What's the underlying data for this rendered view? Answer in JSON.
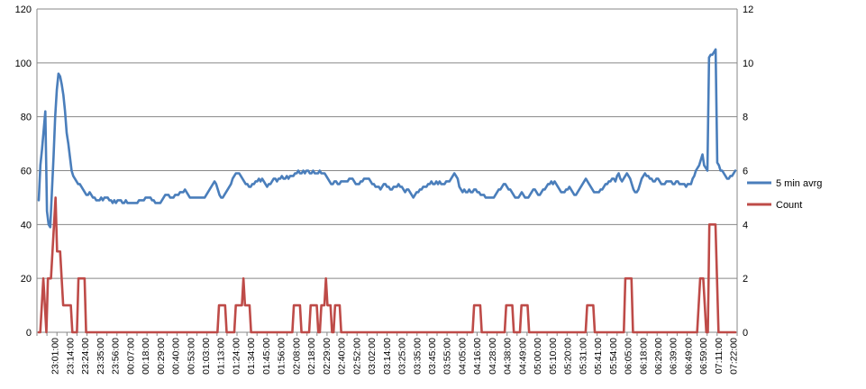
{
  "chart_data": {
    "type": "line",
    "title": "",
    "xlabel": "",
    "ylabel": "",
    "y_left": {
      "min": 0,
      "max": 120,
      "ticks": [
        "0",
        "20",
        "40",
        "60",
        "80",
        "100",
        "120"
      ]
    },
    "y_right": {
      "min": 0,
      "max": 12,
      "ticks": [
        "0",
        "2",
        "4",
        "6",
        "8",
        "10",
        "12"
      ]
    },
    "grid": "horizontal",
    "legend_position": "right",
    "x_tick_labels": [
      "23:01:00",
      "23:14:00",
      "23:24:00",
      "23:35:00",
      "23:56:00",
      "00:07:00",
      "00:18:00",
      "00:29:00",
      "00:40:00",
      "00:53:00",
      "01:03:00",
      "01:13:00",
      "01:24:00",
      "01:34:00",
      "01:45:00",
      "01:56:00",
      "02:08:00",
      "02:18:00",
      "02:29:00",
      "02:40:00",
      "02:52:00",
      "03:02:00",
      "03:14:00",
      "03:25:00",
      "03:35:00",
      "03:45:00",
      "03:55:00",
      "04:05:00",
      "04:16:00",
      "04:28:00",
      "04:38:00",
      "04:49:00",
      "05:00:00",
      "05:10:00",
      "05:20:00",
      "05:31:00",
      "05:41:00",
      "05:54:00",
      "06:05:00",
      "06:18:00",
      "06:29:00",
      "06:39:00",
      "06:49:00",
      "06:59:00",
      "07:11:00",
      "07:22:00"
    ],
    "series": [
      {
        "name": "5 min avrg",
        "axis": "left",
        "color": "#4a7ebb",
        "values": [
          49,
          62,
          68,
          75,
          82,
          45,
          40,
          39,
          52,
          65,
          80,
          90,
          96,
          95,
          92,
          88,
          82,
          74,
          70,
          65,
          60,
          58,
          57,
          56,
          55,
          55,
          54,
          53,
          52,
          51,
          51,
          52,
          51,
          50,
          50,
          49,
          49,
          49,
          50,
          49,
          50,
          50,
          50,
          49,
          49,
          48,
          49,
          48,
          49,
          49,
          49,
          48,
          48,
          49,
          48,
          48,
          48,
          48,
          48,
          48,
          48,
          49,
          49,
          49,
          49,
          50,
          50,
          50,
          50,
          49,
          49,
          48,
          48,
          48,
          48,
          49,
          50,
          51,
          51,
          51,
          50,
          50,
          50,
          51,
          51,
          51,
          52,
          52,
          52,
          53,
          52,
          51,
          50,
          50,
          50,
          50,
          50,
          50,
          50,
          50,
          50,
          50,
          51,
          52,
          53,
          54,
          55,
          56,
          55,
          53,
          51,
          50,
          50,
          51,
          52,
          53,
          54,
          55,
          57,
          58,
          59,
          59,
          59,
          58,
          57,
          56,
          55,
          55,
          54,
          54,
          55,
          55,
          56,
          56,
          57,
          56,
          57,
          56,
          55,
          54,
          55,
          55,
          56,
          57,
          57,
          56,
          57,
          57,
          58,
          57,
          57,
          58,
          57,
          58,
          58,
          58,
          59,
          59,
          60,
          59,
          59,
          60,
          59,
          60,
          60,
          59,
          59,
          60,
          59,
          59,
          59,
          60,
          59,
          59,
          59,
          58,
          57,
          56,
          55,
          55,
          56,
          56,
          55,
          55,
          56,
          56,
          56,
          56,
          56,
          57,
          57,
          57,
          56,
          55,
          55,
          55,
          56,
          56,
          57,
          57,
          57,
          57,
          56,
          55,
          55,
          54,
          54,
          54,
          53,
          54,
          55,
          55,
          54,
          54,
          53,
          53,
          54,
          54,
          54,
          55,
          54,
          54,
          53,
          52,
          53,
          53,
          52,
          51,
          50,
          51,
          52,
          52,
          53,
          53,
          54,
          54,
          54,
          55,
          55,
          56,
          55,
          55,
          56,
          55,
          56,
          55,
          55,
          55,
          56,
          56,
          56,
          57,
          58,
          59,
          58,
          57,
          54,
          53,
          52,
          53,
          52,
          52,
          53,
          52,
          52,
          53,
          53,
          52,
          52,
          51,
          51,
          51,
          50,
          50,
          50,
          50,
          50,
          50,
          51,
          52,
          53,
          53,
          54,
          55,
          55,
          54,
          53,
          53,
          52,
          51,
          50,
          50,
          50,
          51,
          52,
          51,
          50,
          50,
          50,
          51,
          52,
          53,
          53,
          52,
          51,
          51,
          52,
          53,
          53,
          54,
          55,
          55,
          56,
          55,
          56,
          55,
          54,
          53,
          52,
          52,
          52,
          53,
          53,
          54,
          53,
          52,
          51,
          51,
          52,
          53,
          54,
          55,
          56,
          57,
          56,
          55,
          54,
          53,
          52,
          52,
          52,
          52,
          53,
          53,
          54,
          55,
          55,
          56,
          56,
          57,
          57,
          56,
          58,
          59,
          57,
          56,
          57,
          58,
          59,
          58,
          57,
          55,
          53,
          52,
          52,
          53,
          55,
          57,
          58,
          59,
          58,
          58,
          57,
          57,
          56,
          56,
          57,
          57,
          56,
          55,
          55,
          55,
          56,
          56,
          56,
          56,
          55,
          55,
          56,
          56,
          55,
          55,
          55,
          55,
          54,
          55,
          55,
          55,
          57,
          58,
          60,
          61,
          62,
          64,
          66,
          62,
          61,
          60,
          102,
          103,
          103,
          104,
          105,
          63,
          62,
          60,
          60,
          59,
          58,
          57,
          57,
          58,
          58,
          59,
          60
        ]
      },
      {
        "name": "Count",
        "axis": "right",
        "color": "#be4b48",
        "values": [
          0,
          0,
          1,
          2,
          1,
          0,
          2,
          2,
          2,
          3,
          4,
          5,
          3,
          3,
          3,
          2,
          1,
          1,
          1,
          1,
          1,
          1,
          0,
          0,
          0,
          0,
          2,
          2,
          2,
          2,
          2,
          0,
          0,
          0,
          0,
          0,
          0,
          0,
          0,
          0,
          0,
          0,
          0,
          0,
          0,
          0,
          0,
          0,
          0,
          0,
          0,
          0,
          0,
          0,
          0,
          0,
          0,
          0,
          0,
          0,
          0,
          0,
          0,
          0,
          0,
          0,
          0,
          0,
          0,
          0,
          0,
          0,
          0,
          0,
          0,
          0,
          0,
          0,
          0,
          0,
          0,
          0,
          0,
          0,
          0,
          0,
          0,
          0,
          0,
          0,
          0,
          0,
          0,
          0,
          0,
          0,
          0,
          0,
          0,
          0,
          0,
          0,
          0,
          0,
          0,
          0,
          0,
          0,
          0,
          0,
          0,
          0,
          0,
          0,
          0,
          0,
          0,
          0,
          1,
          1,
          1,
          1,
          1,
          0,
          0,
          0,
          0,
          0,
          0,
          1,
          1,
          1,
          1,
          1,
          2,
          1,
          1,
          1,
          1,
          0,
          0,
          0,
          0,
          0,
          0,
          0,
          0,
          0,
          0,
          0,
          0,
          0,
          0,
          0,
          0,
          0,
          0,
          0,
          0,
          0,
          0,
          0,
          0,
          0,
          0,
          0,
          0,
          1,
          1,
          1,
          1,
          1,
          0,
          0,
          0,
          0,
          0,
          0,
          1,
          1,
          1,
          1,
          1,
          0,
          0,
          1,
          1,
          1,
          2,
          1,
          1,
          1,
          0,
          0,
          1,
          1,
          1,
          1,
          0,
          0,
          0,
          0,
          0,
          0,
          0,
          0,
          0,
          0,
          0,
          0,
          0,
          0,
          0,
          0,
          0,
          0,
          0,
          0,
          0,
          0,
          0,
          0,
          0,
          0,
          0,
          0,
          0,
          0,
          0,
          0,
          0,
          0,
          0,
          0,
          0,
          0,
          0,
          0,
          0,
          0,
          0,
          0,
          0,
          0,
          0,
          0,
          0,
          0,
          0,
          0,
          0,
          0,
          0,
          0,
          0,
          0,
          0,
          0,
          0,
          0,
          0,
          0,
          0,
          0,
          0,
          0,
          0,
          0,
          0,
          0,
          0,
          0,
          0,
          0,
          0,
          0,
          0,
          0,
          0,
          0,
          0,
          0,
          0,
          0,
          0,
          1,
          1,
          1,
          1,
          1,
          0,
          0,
          0,
          0,
          0,
          0,
          0,
          0,
          0,
          0,
          0,
          0,
          0,
          0,
          0,
          0,
          1,
          1,
          1,
          1,
          1,
          0,
          0,
          0,
          0,
          0,
          1,
          1,
          1,
          1,
          1,
          0,
          0,
          0,
          0,
          0,
          0,
          0,
          0,
          0,
          0,
          0,
          0,
          0,
          0,
          0,
          0,
          0,
          0,
          0,
          0,
          0,
          0,
          0,
          0,
          0,
          0,
          0,
          0,
          0,
          0,
          0,
          0,
          0,
          0,
          0,
          0,
          0,
          0,
          1,
          1,
          1,
          1,
          1,
          0,
          0,
          0,
          0,
          0,
          0,
          0,
          0,
          0,
          0,
          0,
          0,
          0,
          0,
          0,
          0,
          0,
          0,
          0,
          0,
          2,
          2,
          2,
          2,
          2,
          0,
          0,
          0,
          0,
          0,
          0,
          0,
          0,
          0,
          0,
          0,
          0,
          0,
          0,
          0,
          0,
          0,
          0,
          0,
          0,
          0,
          0,
          0,
          0,
          0,
          0,
          0,
          0,
          0,
          0,
          0,
          0,
          0,
          0,
          0,
          0,
          0,
          0,
          0,
          0,
          0,
          0,
          0,
          1,
          2,
          2,
          2,
          1,
          0,
          0,
          4,
          4,
          4,
          4,
          4,
          2,
          0,
          0,
          0,
          0,
          0,
          0,
          0,
          0,
          0,
          0,
          0,
          0
        ]
      }
    ]
  }
}
